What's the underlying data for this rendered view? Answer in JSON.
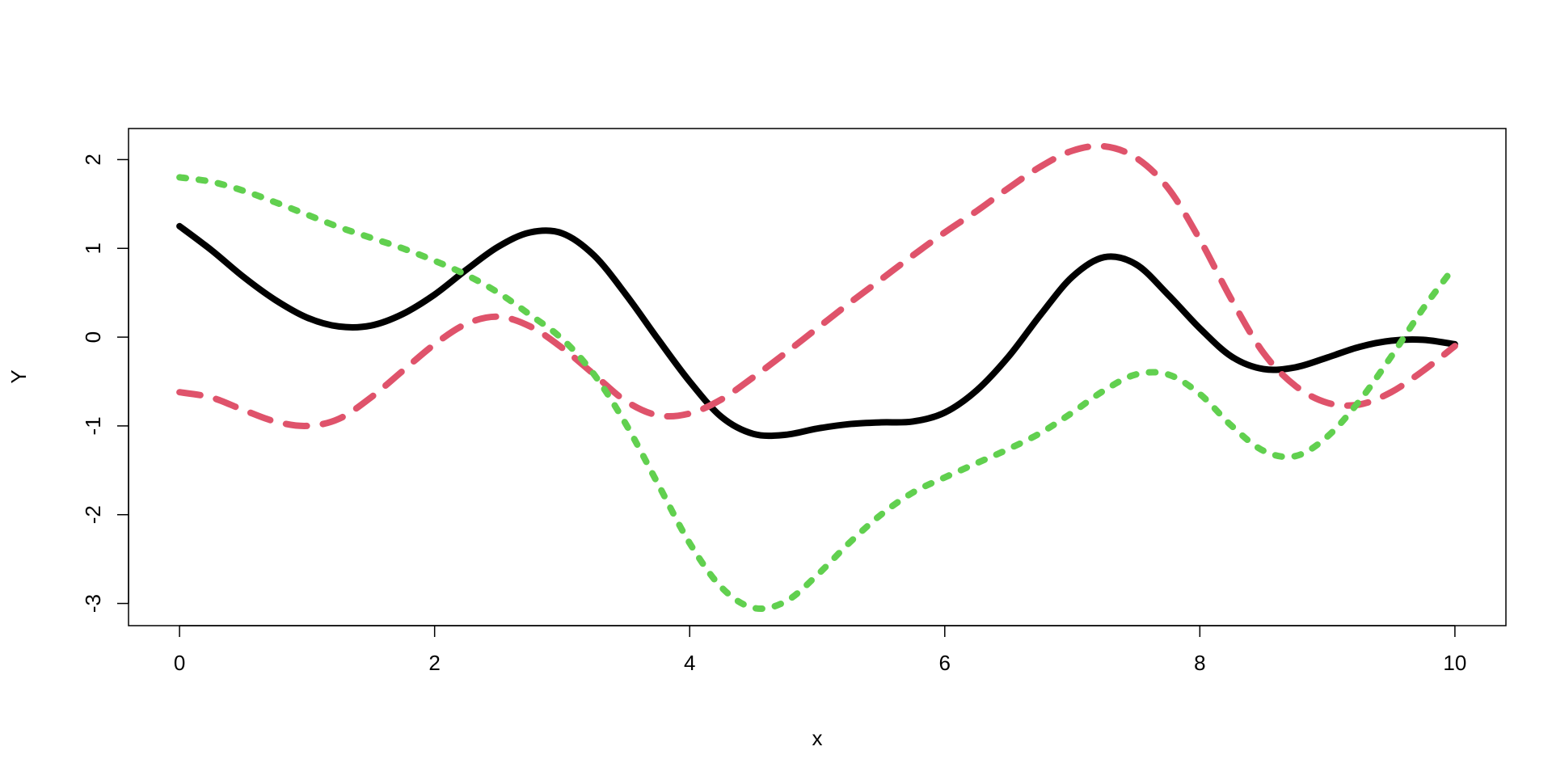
{
  "chart_data": {
    "type": "line",
    "title": "",
    "xlabel": "x",
    "ylabel": "Y",
    "xlim": [
      -0.4,
      10.4
    ],
    "ylim": [
      -3.25,
      2.35
    ],
    "x_ticks": [
      0,
      2,
      4,
      6,
      8,
      10
    ],
    "y_ticks": [
      -3,
      -2,
      -1,
      0,
      1,
      2
    ],
    "grid": false,
    "legend": "none",
    "series": [
      {
        "color": "#000000",
        "line_style": "solid",
        "x": [
          0,
          0.25,
          0.5,
          0.75,
          1.0,
          1.25,
          1.5,
          1.75,
          2.0,
          2.25,
          2.5,
          2.75,
          3.0,
          3.25,
          3.5,
          3.75,
          4.0,
          4.25,
          4.5,
          4.75,
          5.0,
          5.25,
          5.5,
          5.75,
          6.0,
          6.25,
          6.5,
          6.75,
          7.0,
          7.25,
          7.5,
          7.75,
          8.0,
          8.25,
          8.5,
          8.75,
          9.0,
          9.25,
          9.5,
          9.75,
          10.0
        ],
        "y": [
          1.25,
          0.98,
          0.68,
          0.42,
          0.22,
          0.12,
          0.13,
          0.26,
          0.48,
          0.76,
          1.02,
          1.18,
          1.17,
          0.92,
          0.48,
          -0.02,
          -0.5,
          -0.9,
          -1.09,
          -1.1,
          -1.03,
          -0.98,
          -0.96,
          -0.95,
          -0.85,
          -0.6,
          -0.22,
          0.25,
          0.68,
          0.9,
          0.82,
          0.48,
          0.1,
          -0.22,
          -0.36,
          -0.34,
          -0.23,
          -0.11,
          -0.04,
          -0.03,
          -0.08
        ]
      },
      {
        "color": "#df536b",
        "line_style": "dashed",
        "x": [
          0,
          0.25,
          0.5,
          0.75,
          1.0,
          1.25,
          1.5,
          1.75,
          2.0,
          2.25,
          2.5,
          2.75,
          3.0,
          3.25,
          3.5,
          3.75,
          4.0,
          4.25,
          4.5,
          4.75,
          5.0,
          5.25,
          5.5,
          5.75,
          6.0,
          6.25,
          6.5,
          6.75,
          7.0,
          7.25,
          7.5,
          7.75,
          8.0,
          8.25,
          8.5,
          8.75,
          9.0,
          9.25,
          9.5,
          9.75,
          10.0
        ],
        "y": [
          -0.62,
          -0.68,
          -0.82,
          -0.95,
          -1.0,
          -0.92,
          -0.68,
          -0.38,
          -0.08,
          0.15,
          0.23,
          0.12,
          -0.12,
          -0.42,
          -0.72,
          -0.88,
          -0.86,
          -0.7,
          -0.45,
          -0.18,
          0.1,
          0.38,
          0.65,
          0.92,
          1.18,
          1.42,
          1.68,
          1.92,
          2.1,
          2.15,
          2.02,
          1.68,
          1.1,
          0.42,
          -0.18,
          -0.55,
          -0.74,
          -0.76,
          -0.62,
          -0.38,
          -0.1
        ]
      },
      {
        "color": "#61d04f",
        "line_style": "dotted",
        "x": [
          0,
          0.25,
          0.5,
          0.75,
          1.0,
          1.25,
          1.5,
          1.75,
          2.0,
          2.25,
          2.5,
          2.75,
          3.0,
          3.25,
          3.5,
          3.75,
          4.0,
          4.25,
          4.5,
          4.75,
          5.0,
          5.25,
          5.5,
          5.75,
          6.0,
          6.25,
          6.5,
          6.75,
          7.0,
          7.25,
          7.5,
          7.75,
          8.0,
          8.25,
          8.5,
          8.75,
          9.0,
          9.25,
          9.5,
          9.75,
          10.0
        ],
        "y": [
          1.8,
          1.75,
          1.65,
          1.52,
          1.38,
          1.24,
          1.12,
          1.0,
          0.86,
          0.7,
          0.5,
          0.25,
          -0.02,
          -0.42,
          -0.98,
          -1.65,
          -2.32,
          -2.82,
          -3.05,
          -2.98,
          -2.68,
          -2.32,
          -2.0,
          -1.75,
          -1.58,
          -1.42,
          -1.26,
          -1.08,
          -0.85,
          -0.6,
          -0.42,
          -0.42,
          -0.64,
          -1.0,
          -1.28,
          -1.34,
          -1.12,
          -0.72,
          -0.22,
          0.32,
          0.8
        ]
      }
    ]
  }
}
